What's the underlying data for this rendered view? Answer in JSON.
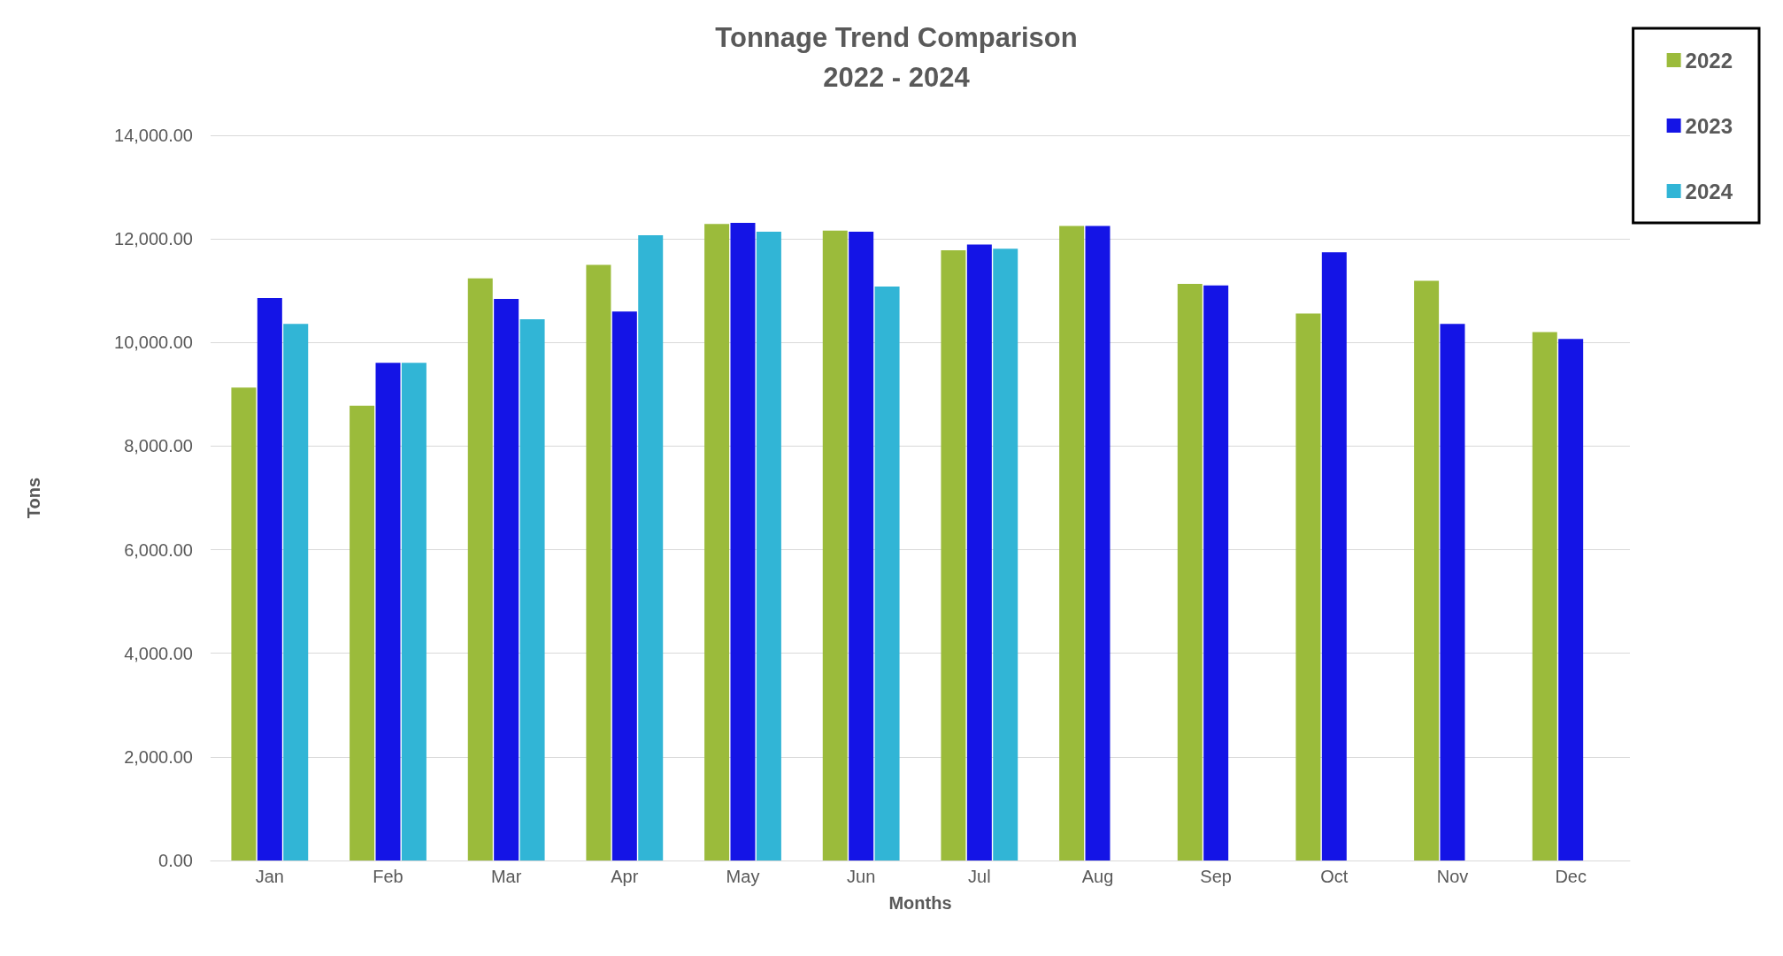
{
  "chart_data": {
    "type": "bar",
    "title": "Tonnage Trend Comparison",
    "subtitle": "2022 - 2024",
    "xlabel": "Months",
    "ylabel": "Tons",
    "categories": [
      "Jan",
      "Feb",
      "Mar",
      "Apr",
      "May",
      "Jun",
      "Jul",
      "Aug",
      "Sep",
      "Oct",
      "Nov",
      "Dec"
    ],
    "series": [
      {
        "name": "2022",
        "color": "#9bbb3b",
        "values": [
          9130,
          8780,
          11240,
          11500,
          12290,
          12160,
          11780,
          12250,
          11130,
          10560,
          11190,
          10200
        ]
      },
      {
        "name": "2023",
        "color": "#1414e6",
        "values": [
          10860,
          9610,
          10840,
          10600,
          12310,
          12140,
          11890,
          12250,
          11100,
          11740,
          10360,
          10070
        ]
      },
      {
        "name": "2024",
        "color": "#31b5d6",
        "values": [
          10360,
          9610,
          10450,
          12070,
          12140,
          11080,
          11810,
          null,
          null,
          null,
          null,
          null
        ]
      }
    ],
    "ylim": [
      0,
      14000
    ],
    "yticks": [
      {
        "value": 0,
        "label": "0.00"
      },
      {
        "value": 2000,
        "label": "2,000.00"
      },
      {
        "value": 4000,
        "label": "4,000.00"
      },
      {
        "value": 6000,
        "label": "6,000.00"
      },
      {
        "value": 8000,
        "label": "8,000.00"
      },
      {
        "value": 10000,
        "label": "10,000.00"
      },
      {
        "value": 12000,
        "label": "12,000.00"
      },
      {
        "value": 14000,
        "label": "14,000.00"
      }
    ],
    "grid": "y",
    "legend": "top right"
  }
}
